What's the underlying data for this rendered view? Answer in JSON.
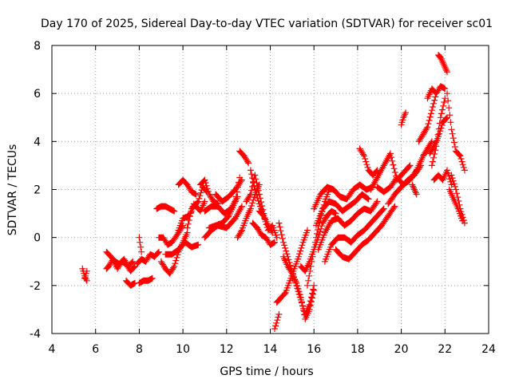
{
  "chart_data": {
    "type": "scatter",
    "title": "Day 170 of 2025, Sidereal Day-to-day VTEC variation (SDTVAR) for receiver sc01",
    "xlabel": "GPS time / hours",
    "ylabel": "SDTVAR / TECUs",
    "xlim": [
      4,
      24
    ],
    "ylim": [
      -4,
      8
    ],
    "xticks": [
      "4",
      "6",
      "8",
      "10",
      "12",
      "14",
      "16",
      "18",
      "20",
      "22",
      "24"
    ],
    "yticks": [
      "-4",
      "-2",
      "0",
      "2",
      "4",
      "6",
      "8"
    ],
    "grid": true,
    "marker": "plus",
    "color": "#ff0000",
    "tracks": [
      {
        "x": [
          5.4,
          5.5,
          5.6
        ],
        "y": [
          -1.3,
          -1.6,
          -1.8
        ]
      },
      {
        "x": [
          5.5,
          5.6
        ],
        "y": [
          -1.7,
          -1.4
        ]
      },
      {
        "x": [
          6.5,
          6.7,
          6.9,
          7.1,
          7.3,
          7.5,
          7.7
        ],
        "y": [
          -0.6,
          -0.8,
          -1.0,
          -1.1,
          -0.9,
          -1.2,
          -1.0
        ]
      },
      {
        "x": [
          6.5,
          6.6,
          6.8,
          7.0,
          7.2,
          7.4,
          7.6,
          7.8
        ],
        "y": [
          -1.3,
          -1.2,
          -0.9,
          -1.3,
          -1.0,
          -1.1,
          -1.4,
          -1.2
        ]
      },
      {
        "x": [
          7.4,
          7.6,
          7.8
        ],
        "y": [
          -1.8,
          -2.0,
          -1.9
        ]
      },
      {
        "x": [
          8.0,
          8.2,
          8.4,
          8.6
        ],
        "y": [
          -1.9,
          -1.8,
          -1.8,
          -1.7
        ]
      },
      {
        "x": [
          7.9,
          8.1,
          8.3,
          8.5,
          8.7,
          8.9
        ],
        "y": [
          -1.1,
          -0.9,
          -1.0,
          -0.7,
          -0.8,
          -0.6
        ]
      },
      {
        "x": [
          8.0,
          8.1
        ],
        "y": [
          0.0,
          -0.6
        ]
      },
      {
        "x": [
          8.8,
          9.0,
          9.2,
          9.4,
          9.6
        ],
        "y": [
          1.2,
          1.3,
          1.3,
          1.2,
          1.1
        ]
      },
      {
        "x": [
          8.9,
          9.1,
          9.3,
          9.5,
          9.8,
          10.0
        ],
        "y": [
          0.0,
          0.0,
          -0.3,
          -0.2,
          0.2,
          0.5
        ]
      },
      {
        "x": [
          9.0,
          9.2,
          9.4,
          9.6,
          9.8,
          10.0,
          10.2
        ],
        "y": [
          -1.0,
          -1.3,
          -1.5,
          -1.2,
          -0.6,
          -0.2,
          0.2
        ]
      },
      {
        "x": [
          9.2,
          9.5,
          9.8,
          10.1,
          10.4,
          10.7
        ],
        "y": [
          -0.7,
          -0.7,
          -0.5,
          -0.2,
          -0.4,
          -0.3
        ]
      },
      {
        "x": [
          9.8,
          10.0,
          10.2,
          10.4,
          10.6
        ],
        "y": [
          2.2,
          2.4,
          2.2,
          1.9,
          1.8
        ]
      },
      {
        "x": [
          9.8,
          10.0,
          10.3,
          10.5,
          10.8,
          11.0
        ],
        "y": [
          0.3,
          0.8,
          0.9,
          1.4,
          1.1,
          1.5
        ]
      },
      {
        "x": [
          10.2,
          10.4,
          10.7,
          10.9,
          11.1
        ],
        "y": [
          0.4,
          1.2,
          1.5,
          2.1,
          1.9
        ]
      },
      {
        "x": [
          10.8,
          11.0,
          11.2,
          11.4,
          11.6
        ],
        "y": [
          2.2,
          2.4,
          1.8,
          1.5,
          1.4
        ]
      },
      {
        "x": [
          11.0,
          11.3,
          11.6,
          11.9,
          12.2,
          12.5
        ],
        "y": [
          1.1,
          1.3,
          1.3,
          1.0,
          1.2,
          1.7
        ]
      },
      {
        "x": [
          11.2,
          11.5,
          11.8,
          12.1,
          12.4,
          12.6
        ],
        "y": [
          0.4,
          0.5,
          0.6,
          0.9,
          1.5,
          2.5
        ]
      },
      {
        "x": [
          11.5,
          11.8,
          12.1,
          12.4,
          12.7
        ],
        "y": [
          1.8,
          1.5,
          1.7,
          2.0,
          2.4
        ]
      },
      {
        "x": [
          11.0,
          11.3,
          11.6,
          12.0,
          12.4,
          12.7
        ],
        "y": [
          0.0,
          0.3,
          0.5,
          0.4,
          0.8,
          1.3
        ]
      },
      {
        "x": [
          12.6,
          12.8,
          13.0
        ],
        "y": [
          3.6,
          3.4,
          3.1
        ]
      },
      {
        "x": [
          12.5,
          12.7,
          12.9,
          13.1,
          13.3,
          13.5
        ],
        "y": [
          0.0,
          0.3,
          0.8,
          1.2,
          1.8,
          2.2
        ]
      },
      {
        "x": [
          12.9,
          13.1,
          13.3,
          13.5,
          13.7
        ],
        "y": [
          1.5,
          1.8,
          2.6,
          1.8,
          1.0
        ]
      },
      {
        "x": [
          13.1,
          13.3,
          13.5,
          13.7,
          13.9,
          14.1
        ],
        "y": [
          2.8,
          2.0,
          1.4,
          0.9,
          0.5,
          0.2
        ]
      },
      {
        "x": [
          13.2,
          13.4,
          13.6,
          13.8,
          14.0,
          14.2
        ],
        "y": [
          0.6,
          0.4,
          0.1,
          0.0,
          -0.3,
          -0.2
        ]
      },
      {
        "x": [
          13.5,
          13.7,
          13.9,
          14.1,
          14.3
        ],
        "y": [
          1.1,
          0.9,
          0.3,
          0.5,
          0.0
        ]
      },
      {
        "x": [
          14.2,
          14.4
        ],
        "y": [
          -3.8,
          -3.2
        ]
      },
      {
        "x": [
          14.3,
          14.5,
          14.7,
          14.9,
          15.1,
          15.3,
          15.5,
          15.7
        ],
        "y": [
          -2.7,
          -2.5,
          -2.3,
          -1.8,
          -1.3,
          -0.8,
          -0.2,
          0.3
        ]
      },
      {
        "x": [
          14.4,
          14.6,
          14.8,
          15.0,
          15.2,
          15.4,
          15.6,
          15.8,
          16.0
        ],
        "y": [
          0.6,
          -0.2,
          -0.8,
          -1.4,
          -2.0,
          -2.6,
          -3.2,
          -2.8,
          -2.0
        ]
      },
      {
        "x": [
          14.6,
          14.8,
          15.0,
          15.2,
          15.4,
          15.6,
          15.8,
          16.0
        ],
        "y": [
          -0.8,
          -1.2,
          -1.5,
          -1.9,
          -2.5,
          -3.4,
          -3.0,
          -2.2
        ]
      },
      {
        "x": [
          15.4,
          15.6,
          15.8,
          16.0,
          16.2,
          16.4,
          16.6,
          16.8,
          17.0
        ],
        "y": [
          -1.2,
          -1.4,
          -1.0,
          -0.5,
          0.0,
          0.6,
          0.9,
          1.1,
          1.0
        ]
      },
      {
        "x": [
          15.7,
          15.9,
          16.1,
          16.3,
          16.5,
          16.7
        ],
        "y": [
          -2.0,
          -1.0,
          0.0,
          0.8,
          1.5,
          2.0
        ]
      },
      {
        "x": [
          16.0,
          16.3,
          16.6,
          16.9,
          17.2,
          17.5,
          17.8,
          18.1,
          18.4,
          18.7
        ],
        "y": [
          1.2,
          1.8,
          2.1,
          2.0,
          1.7,
          1.6,
          2.0,
          2.2,
          2.0,
          2.1
        ]
      },
      {
        "x": [
          16.1,
          16.4,
          16.7,
          17.0,
          17.3,
          17.6,
          17.9,
          18.2,
          18.5
        ],
        "y": [
          0.5,
          1.2,
          1.5,
          1.4,
          1.1,
          1.3,
          1.5,
          1.8,
          1.6
        ]
      },
      {
        "x": [
          16.2,
          16.5,
          16.8,
          17.1,
          17.4,
          17.7,
          18.0,
          18.3,
          18.6,
          18.9
        ],
        "y": [
          -0.5,
          0.2,
          0.7,
          0.8,
          0.5,
          0.7,
          1.0,
          1.2,
          1.1,
          1.5
        ]
      },
      {
        "x": [
          16.5,
          16.8,
          17.1,
          17.4,
          17.7,
          18.0,
          18.3,
          18.6,
          18.9,
          19.2
        ],
        "y": [
          -1.0,
          -0.3,
          0.0,
          0.0,
          -0.2,
          0.1,
          0.3,
          0.6,
          0.9,
          1.2
        ]
      },
      {
        "x": [
          17.0,
          17.3,
          17.6,
          17.9,
          18.2,
          18.5,
          18.8,
          19.1,
          19.4,
          19.7
        ],
        "y": [
          -0.5,
          -0.8,
          -0.9,
          -0.6,
          -0.3,
          -0.1,
          0.2,
          0.5,
          0.9,
          1.3
        ]
      },
      {
        "x": [
          18.1,
          18.3,
          18.5,
          18.7,
          18.9
        ],
        "y": [
          3.7,
          3.4,
          2.8,
          2.6,
          2.8
        ]
      },
      {
        "x": [
          18.6,
          18.9,
          19.2,
          19.5,
          19.8,
          20.1,
          20.4
        ],
        "y": [
          2.0,
          2.5,
          3.0,
          3.5,
          2.4,
          2.7,
          3.0
        ]
      },
      {
        "x": [
          18.9,
          19.2,
          19.5,
          19.8,
          20.1,
          20.4,
          20.7
        ],
        "y": [
          2.1,
          1.9,
          2.1,
          2.5,
          2.2,
          2.4,
          2.8
        ]
      },
      {
        "x": [
          19.4,
          19.7,
          20.0,
          20.3,
          20.6,
          20.9
        ],
        "y": [
          1.4,
          1.8,
          2.1,
          2.4,
          2.6,
          3.0
        ]
      },
      {
        "x": [
          20.0,
          20.1,
          20.2
        ],
        "y": [
          4.7,
          5.0,
          5.2
        ]
      },
      {
        "x": [
          20.5,
          20.6,
          20.7
        ],
        "y": [
          2.2,
          2.0,
          1.8
        ]
      },
      {
        "x": [
          20.6,
          20.8,
          21.0,
          21.2,
          21.4
        ],
        "y": [
          2.6,
          3.0,
          3.4,
          3.7,
          4.0
        ]
      },
      {
        "x": [
          20.8,
          21.0,
          21.2,
          21.4,
          21.6
        ],
        "y": [
          4.0,
          4.3,
          4.6,
          5.3,
          6.0
        ]
      },
      {
        "x": [
          21.2,
          21.4,
          21.6,
          21.8,
          22.0
        ],
        "y": [
          5.8,
          6.2,
          6.0,
          6.3,
          6.2
        ]
      },
      {
        "x": [
          21.3,
          21.5,
          21.7,
          21.9,
          22.1
        ],
        "y": [
          3.5,
          3.8,
          4.2,
          4.8,
          5.0
        ]
      },
      {
        "x": [
          21.4,
          21.6,
          21.8,
          22.0
        ],
        "y": [
          3.0,
          3.8,
          5.0,
          5.8
        ]
      },
      {
        "x": [
          21.7,
          21.8,
          21.9,
          22.0,
          22.1
        ],
        "y": [
          7.6,
          7.5,
          7.3,
          7.1,
          6.9
        ]
      },
      {
        "x": [
          21.5,
          21.7,
          21.9,
          22.1,
          22.3
        ],
        "y": [
          2.4,
          2.6,
          2.4,
          2.8,
          2.2
        ]
      },
      {
        "x": [
          22.1,
          22.3,
          22.5,
          22.7,
          22.9
        ],
        "y": [
          6.0,
          4.5,
          3.6,
          3.4,
          2.8
        ]
      },
      {
        "x": [
          22.2,
          22.4,
          22.6,
          22.8
        ],
        "y": [
          2.0,
          1.6,
          1.2,
          0.7
        ]
      },
      {
        "x": [
          22.3,
          22.5,
          22.7,
          22.9
        ],
        "y": [
          2.6,
          2.0,
          1.2,
          0.6
        ]
      }
    ]
  }
}
